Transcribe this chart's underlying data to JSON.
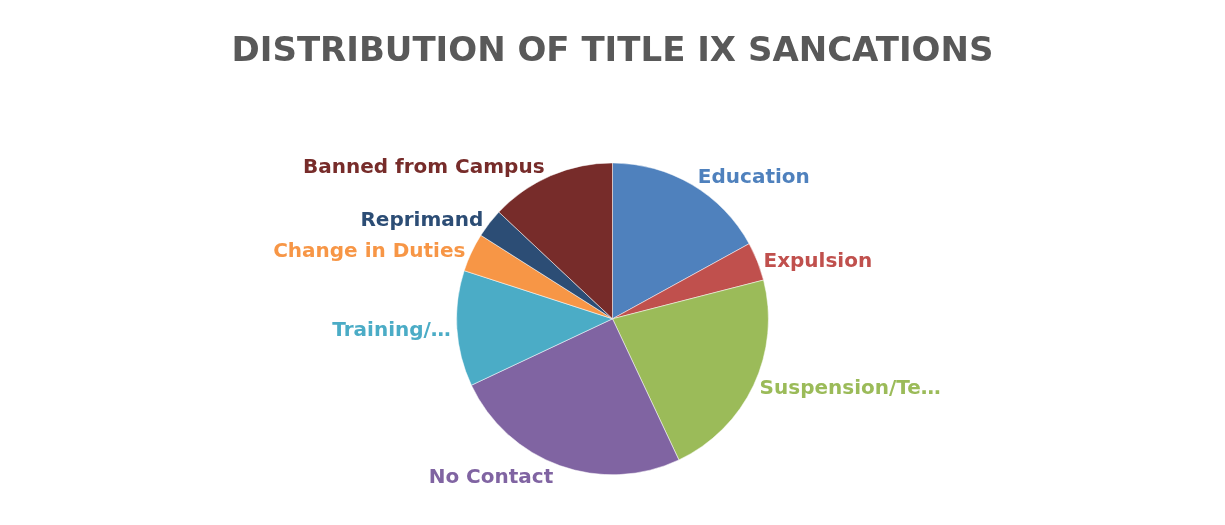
{
  "chart_data": {
    "type": "pie",
    "title": "DISTRIBUTION OF TITLE IX SANCATIONS",
    "categories": [
      "Education",
      "Expulsion",
      "Suspension/Te…",
      "No Contact",
      "Training/…",
      "Change in Duties",
      "Reprimand",
      "Banned from Campus"
    ],
    "values": [
      17,
      4,
      22,
      25,
      12,
      4,
      3,
      13
    ],
    "colors": [
      "#4f81bd",
      "#c0504d",
      "#9bbb59",
      "#8064a2",
      "#4bacc6",
      "#f79646",
      "#2c4d75",
      "#772c2a"
    ]
  }
}
